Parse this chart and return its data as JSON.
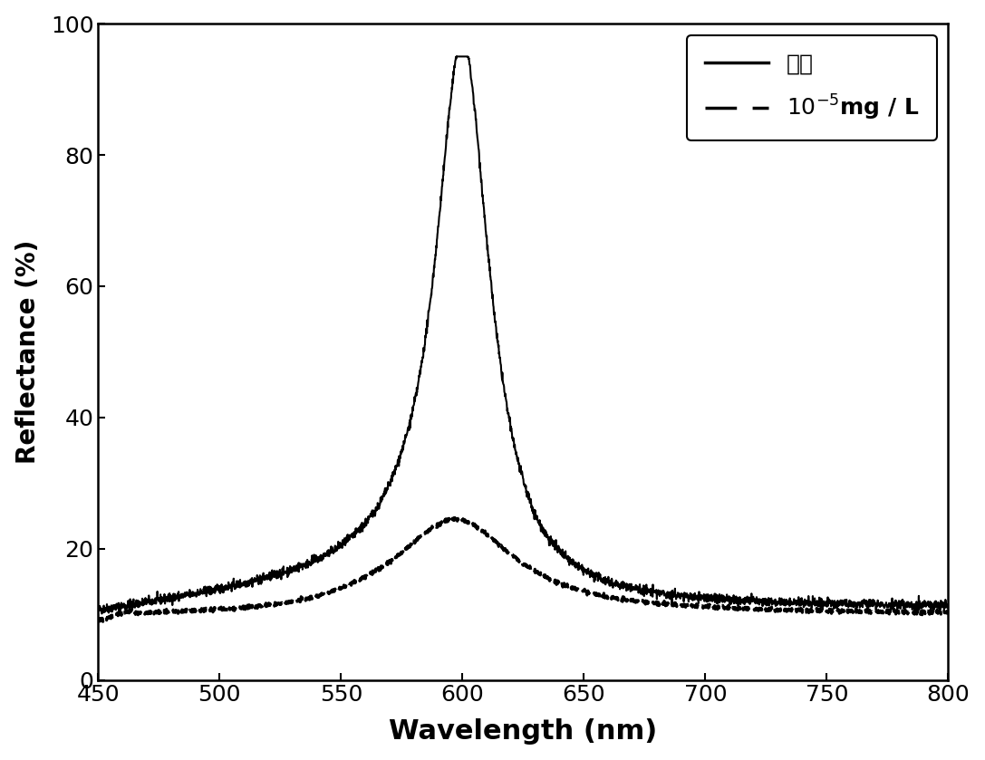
{
  "xlim": [
    450,
    800
  ],
  "ylim": [
    0,
    100
  ],
  "xticks": [
    450,
    500,
    550,
    600,
    650,
    700,
    750,
    800
  ],
  "yticks": [
    0,
    20,
    40,
    60,
    80,
    100
  ],
  "xlabel": "Wavelength (nm)",
  "ylabel": "Reflectance (%)",
  "xlabel_fontsize": 22,
  "ylabel_fontsize": 20,
  "tick_fontsize": 18,
  "legend_fontsize": 18,
  "line1_label": "空白",
  "line2_label": "$10^{-5}$mg / L",
  "line1_color": "#000000",
  "line2_color": "#000000",
  "background_color": "#ffffff"
}
